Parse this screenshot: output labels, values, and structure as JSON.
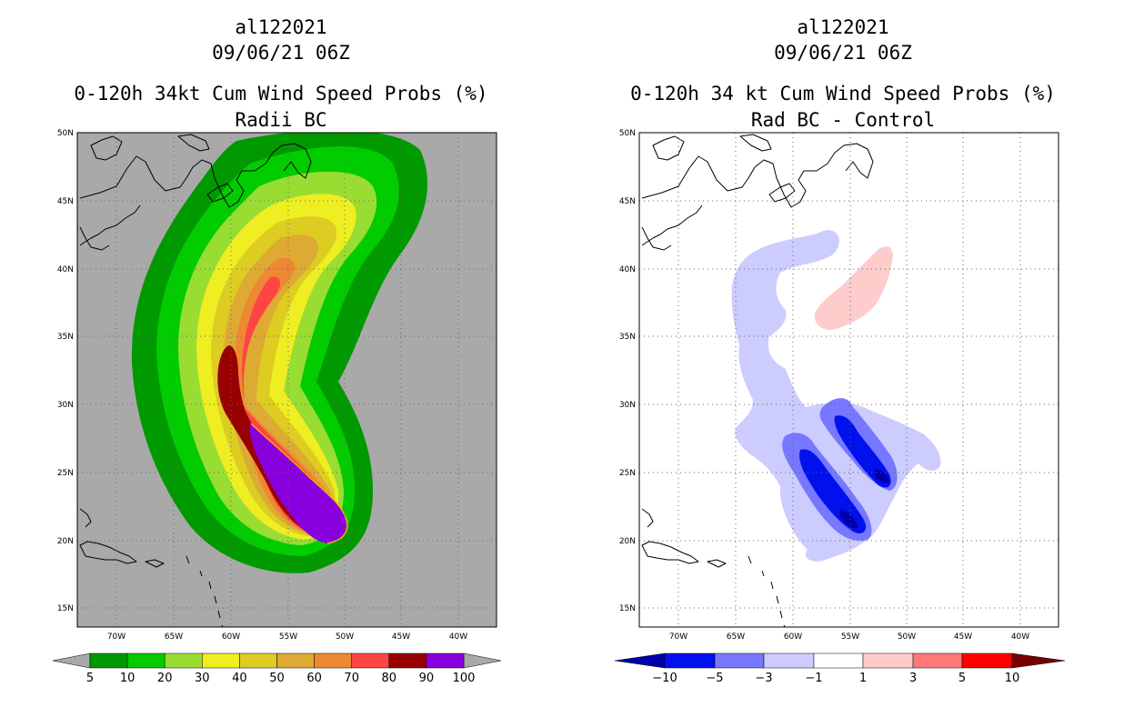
{
  "chart_data": [
    {
      "type": "heatmap",
      "storm_id": "al122021",
      "datetime": "09/06/21 06Z",
      "title": "0-120h 34kt Cum Wind Speed Probs (%)",
      "subtitle": "Radii BC",
      "x_ticks": [
        "70W",
        "65W",
        "60W",
        "55W",
        "50W",
        "45W",
        "40W"
      ],
      "y_ticks": [
        "50N",
        "45N",
        "40N",
        "35N",
        "30N",
        "25N",
        "20N",
        "15N"
      ],
      "xlim": [
        -75,
        -38
      ],
      "ylim": [
        13.5,
        50
      ],
      "colorbar": {
        "labels": [
          "5",
          "10",
          "20",
          "30",
          "40",
          "50",
          "60",
          "70",
          "80",
          "90",
          "100"
        ],
        "colors": [
          "#009900",
          "#00cc00",
          "#99dd33",
          "#eeee22",
          "#ddcc22",
          "#ddaa33",
          "#ee8833",
          "#ff4444",
          "#990000",
          "#8800dd"
        ]
      }
    },
    {
      "type": "heatmap",
      "storm_id": "al122021",
      "datetime": "09/06/21 06Z",
      "title": "0-120h 34 kt Cum Wind Speed Probs (%)",
      "subtitle": "Rad BC - Control",
      "x_ticks": [
        "70W",
        "65W",
        "60W",
        "55W",
        "50W",
        "45W",
        "40W"
      ],
      "y_ticks": [
        "50N",
        "45N",
        "40N",
        "35N",
        "30N",
        "25N",
        "20N",
        "15N"
      ],
      "xlim": [
        -75,
        -38
      ],
      "ylim": [
        13.5,
        50
      ],
      "colorbar": {
        "labels": [
          "-10",
          "-5",
          "-3",
          "-1",
          "1",
          "3",
          "5",
          "10"
        ],
        "colors": [
          "#0000aa",
          "#0011ee",
          "#7777ff",
          "#ccccff",
          "#ffffff",
          "#ffcccc",
          "#ff7777",
          "#ff0000",
          "#770000"
        ]
      }
    }
  ]
}
